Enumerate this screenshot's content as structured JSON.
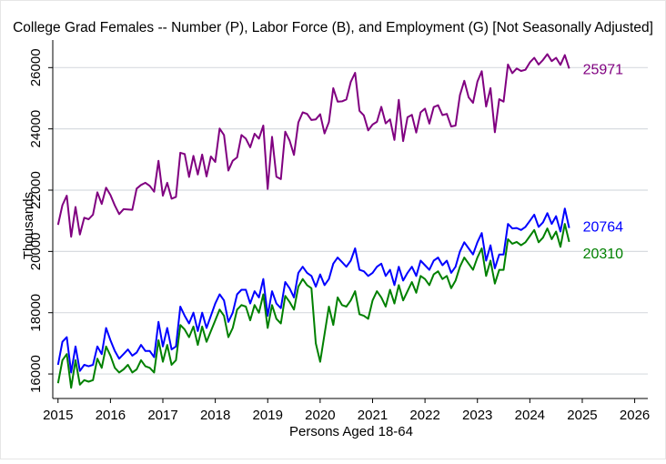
{
  "chart_data": {
    "type": "line",
    "title": "College Grad Females -- Number (P), Labor Force (B), and Employment (G) [Not Seasonally Adjusted]",
    "xlabel": "Persons Aged 18-64",
    "ylabel": "Thousands",
    "xlim": [
      2014.9,
      2026.25
    ],
    "ylim": [
      15200,
      26900
    ],
    "x_ticks": [
      "2015",
      "2016",
      "2017",
      "2018",
      "2019",
      "2020",
      "2021",
      "2022",
      "2023",
      "2024",
      "2025",
      "2026"
    ],
    "y_ticks": [
      "16000",
      "18000",
      "20000",
      "22000",
      "24000",
      "26000"
    ],
    "grid": "horizontal",
    "legend": "none",
    "series": [
      {
        "key": "P",
        "color": "#800080",
        "end_label": "25971",
        "x_start": 2015.0,
        "x_step": 0.083333,
        "values": [
          20870,
          21510,
          21820,
          20480,
          21450,
          20550,
          21100,
          21050,
          21200,
          21930,
          21550,
          22080,
          21840,
          21500,
          21220,
          21380,
          21370,
          21360,
          22050,
          22170,
          22240,
          22140,
          21950,
          22960,
          21820,
          22240,
          21720,
          21780,
          23220,
          23180,
          22430,
          23120,
          22510,
          23160,
          22450,
          23100,
          22920,
          24010,
          23800,
          22640,
          22960,
          23070,
          23800,
          23680,
          23400,
          23840,
          23680,
          24110,
          22040,
          23740,
          22440,
          22360,
          23910,
          23620,
          23150,
          24210,
          24540,
          24490,
          24290,
          24310,
          24480,
          23850,
          24220,
          25330,
          24890,
          24900,
          24960,
          25530,
          25830,
          24590,
          24440,
          23950,
          24140,
          24230,
          24720,
          24180,
          24310,
          23640,
          24950,
          23600,
          24380,
          24460,
          23880,
          24540,
          24660,
          24170,
          24710,
          24770,
          24450,
          24490,
          24080,
          24110,
          25100,
          25570,
          25030,
          24850,
          25540,
          25880,
          24730,
          25330,
          23890,
          24970,
          24890,
          26100,
          25820,
          25970,
          25890,
          25930,
          26170,
          26320,
          26100,
          26250,
          26440,
          26210,
          26320,
          26090,
          26410,
          25971
        ]
      },
      {
        "key": "B",
        "color": "#0000ff",
        "end_label": "20764",
        "x_start": 2015.0,
        "x_step": 0.083333,
        "values": [
          16300,
          17050,
          17200,
          16050,
          16900,
          16100,
          16300,
          16250,
          16300,
          16900,
          16650,
          17500,
          17100,
          16750,
          16500,
          16650,
          16800,
          16600,
          16700,
          16950,
          16750,
          16750,
          16550,
          17700,
          16900,
          17500,
          16800,
          16900,
          18200,
          17900,
          17650,
          18000,
          17400,
          18000,
          17500,
          17900,
          18300,
          18600,
          18400,
          17700,
          18000,
          18600,
          18750,
          18750,
          18300,
          18700,
          18500,
          19100,
          17900,
          18700,
          18300,
          18150,
          19000,
          18800,
          18500,
          19300,
          19500,
          19300,
          19200,
          18850,
          19250,
          18900,
          19100,
          19600,
          19800,
          19650,
          19500,
          19700,
          20100,
          19400,
          19350,
          19200,
          19300,
          19500,
          19600,
          19200,
          19400,
          18900,
          19500,
          19050,
          19300,
          19500,
          19200,
          19700,
          19550,
          19400,
          19700,
          19800,
          19550,
          19700,
          19300,
          19500,
          20000,
          20300,
          20100,
          19900,
          20300,
          20600,
          19700,
          20200,
          19450,
          19900,
          19900,
          20900,
          20750,
          20764,
          20700,
          20800,
          21000,
          21200,
          20800,
          20950,
          21250,
          20900,
          21150,
          20650,
          21400,
          20764
        ]
      },
      {
        "key": "G",
        "color": "#008000",
        "end_label": "20310",
        "x_start": 2015.0,
        "x_step": 0.083333,
        "values": [
          15700,
          16450,
          16650,
          15550,
          16450,
          15650,
          15800,
          15750,
          15800,
          16500,
          16200,
          16900,
          16600,
          16200,
          16050,
          16150,
          16300,
          16050,
          16150,
          16450,
          16250,
          16200,
          16050,
          17100,
          16400,
          16950,
          16300,
          16450,
          17600,
          17450,
          17200,
          17550,
          16950,
          17550,
          17050,
          17400,
          17750,
          18100,
          17900,
          17200,
          17500,
          18100,
          18250,
          18200,
          17750,
          18250,
          18000,
          18600,
          17500,
          18250,
          17800,
          17650,
          18550,
          18350,
          18100,
          18850,
          19100,
          18900,
          18800,
          17000,
          16400,
          17300,
          18200,
          17600,
          18500,
          18250,
          18200,
          18400,
          18700,
          17950,
          17900,
          17800,
          18400,
          18700,
          18500,
          18200,
          18750,
          18300,
          18900,
          18400,
          18700,
          19000,
          18650,
          19200,
          19100,
          18900,
          19250,
          19350,
          19100,
          19200,
          18800,
          19050,
          19500,
          19800,
          19600,
          19400,
          19800,
          20100,
          19200,
          19700,
          18950,
          19400,
          19400,
          20400,
          20250,
          20310,
          20200,
          20300,
          20500,
          20700,
          20300,
          20450,
          20750,
          20400,
          20650,
          20150,
          20900,
          20310
        ]
      }
    ]
  }
}
